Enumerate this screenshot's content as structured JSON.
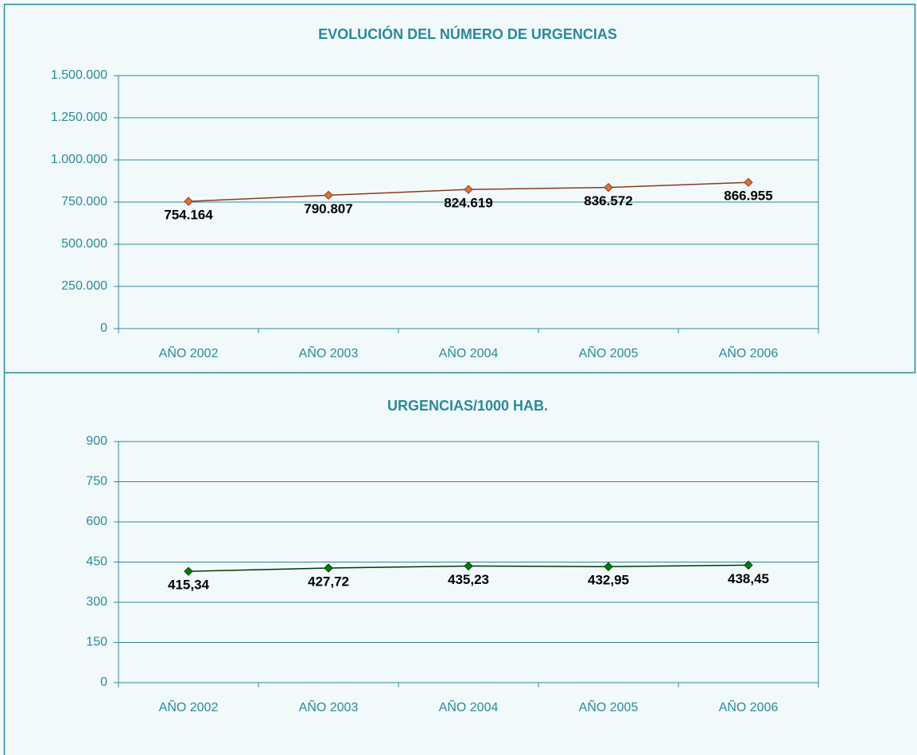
{
  "chart_data": [
    {
      "type": "line",
      "title": "EVOLUCIÓN DEL NÚMERO DE URGENCIAS",
      "categories": [
        "AÑO 2002",
        "AÑO 2003",
        "AÑO 2004",
        "AÑO 2005",
        "AÑO 2006"
      ],
      "series": [
        {
          "color": "#8b3a1a",
          "marker_color": "#e0703c",
          "values": [
            754164,
            790807,
            824619,
            836572,
            866955
          ],
          "value_labels": [
            "754.164",
            "790.807",
            "824.619",
            "836.572",
            "866.955"
          ]
        }
      ],
      "ylim": [
        0,
        1500000
      ],
      "yticks": [
        0,
        {
          "value": 250000,
          "label": "250.000"
        },
        {
          "value": 500000,
          "label": "500.000"
        },
        {
          "value": 750000,
          "label": "750.000"
        },
        {
          "value": 1000000,
          "label": "1.000.000"
        },
        {
          "value": 1250000,
          "label": "1.250.000"
        },
        {
          "value": 1500000,
          "label": "1.500.000"
        }
      ],
      "grid": true
    },
    {
      "type": "line",
      "title": "URGENCIAS/1000 HAB.",
      "categories": [
        "AÑO 2002",
        "AÑO 2003",
        "AÑO 2004",
        "AÑO 2005",
        "AÑO 2006"
      ],
      "series": [
        {
          "color": "#003a00",
          "marker_color": "#008000",
          "values": [
            415.34,
            427.72,
            435.23,
            432.95,
            438.45
          ],
          "value_labels": [
            "415,34",
            "427,72",
            "435,23",
            "432,95",
            "438,45"
          ]
        }
      ],
      "ylim": [
        0,
        900
      ],
      "yticks": [
        0,
        150,
        300,
        450,
        600,
        750,
        900
      ],
      "grid": true
    }
  ]
}
